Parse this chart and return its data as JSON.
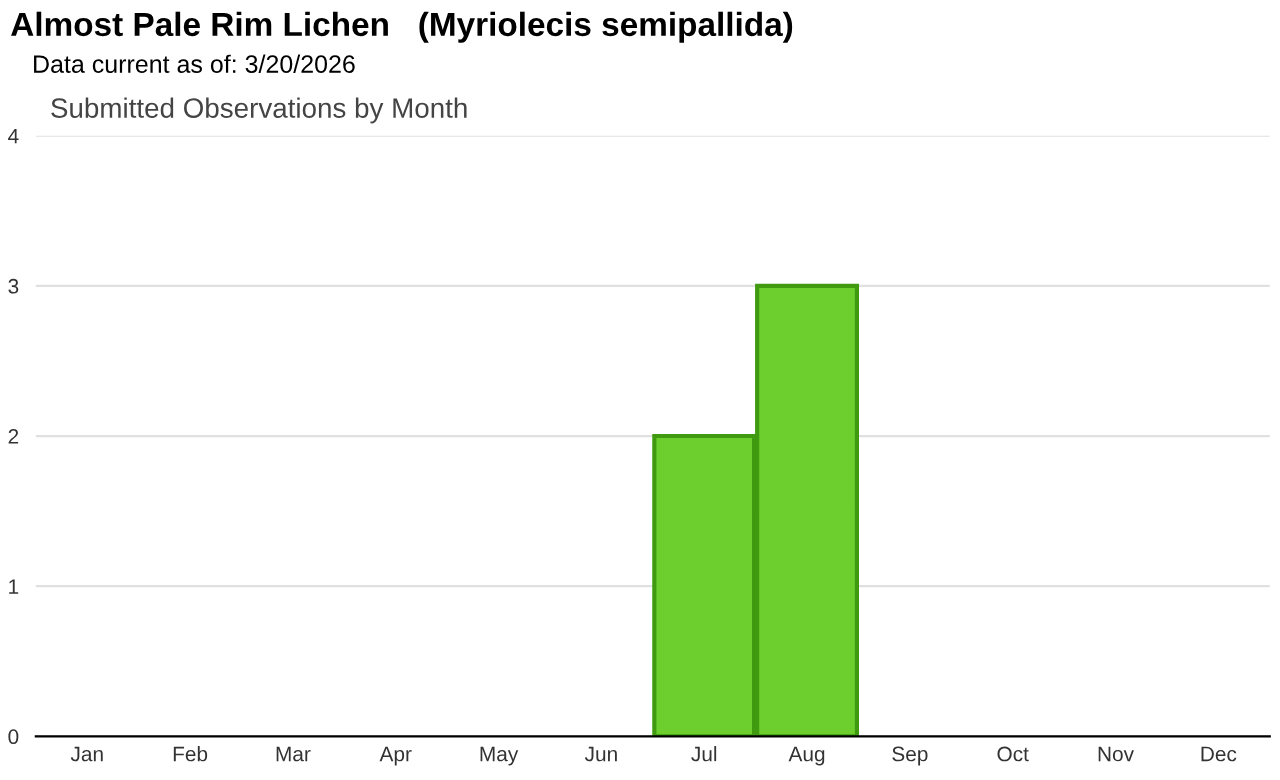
{
  "chart_data": {
    "type": "bar",
    "title": "Almost Pale Rim Lichen   (Myriolecis semipallida)",
    "subtitle": "Data current as of: 3/20/2026",
    "annotations": [
      "Submitted Observations by Month"
    ],
    "categories": [
      "Jan",
      "Feb",
      "Mar",
      "Apr",
      "May",
      "Jun",
      "Jul",
      "Aug",
      "Sep",
      "Oct",
      "Nov",
      "Dec"
    ],
    "values": [
      0,
      0,
      0,
      0,
      0,
      0,
      2,
      3,
      0,
      0,
      0,
      0
    ],
    "color": "#6ccf2e",
    "ylim": [
      0,
      4
    ],
    "yticks": [
      0,
      1,
      2,
      3,
      4
    ],
    "grid": "y",
    "legend": false
  }
}
